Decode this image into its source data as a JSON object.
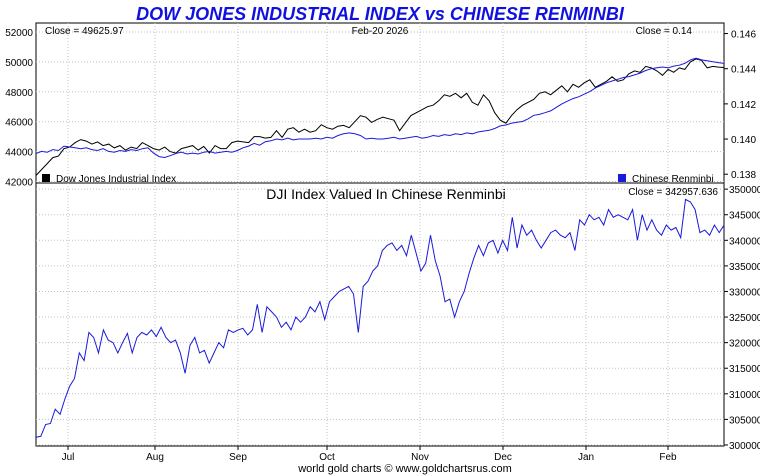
{
  "chart_data": [
    {
      "type": "line",
      "title": "DOW JONES INDUSTRIAL INDEX vs CHINESE RENMINBI",
      "date_label": "Feb-20  2026",
      "close_left": "Close = 49625.97",
      "close_right": "Close = 0.14",
      "x_labels": [
        "Jul",
        "Aug",
        "Sep",
        "Oct",
        "Nov",
        "Dec",
        "Jan",
        "Feb"
      ],
      "y_left": {
        "ticks": [
          "52000",
          "50000",
          "48000",
          "46000",
          "44000",
          "42000"
        ],
        "ylim": [
          41900,
          52600
        ]
      },
      "y_right": {
        "ticks": [
          "0.146",
          "0.144",
          "0.142",
          "0.140",
          "0.138"
        ],
        "ylim": [
          0.1375,
          0.1466
        ]
      },
      "grid": true,
      "legend_position": "bottom",
      "colors": {
        "dow": "#000000",
        "cny": "#1a1adc"
      },
      "series": [
        {
          "name": "Dow Jones Industrial Index",
          "axis": "left",
          "values": [
            42400,
            42800,
            43200,
            43600,
            43700,
            44200,
            44300,
            44600,
            44800,
            44700,
            44500,
            44650,
            44400,
            44500,
            44250,
            44400,
            44100,
            44300,
            44200,
            44600,
            44400,
            44200,
            44100,
            44300,
            44000,
            43900,
            44200,
            44300,
            44400,
            44100,
            44350,
            43900,
            44400,
            44200,
            44200,
            44600,
            44700,
            44650,
            44600,
            45000,
            45000,
            44900,
            44950,
            45400,
            44950,
            45500,
            45600,
            45300,
            45500,
            45300,
            45400,
            45800,
            45600,
            45500,
            45700,
            45750,
            45600,
            46000,
            46400,
            46300,
            45950,
            46150,
            46300,
            46200,
            46100,
            45400,
            45900,
            46400,
            46600,
            46800,
            47000,
            47100,
            47400,
            47800,
            47700,
            47900,
            47600,
            47900,
            47300,
            47100,
            47800,
            47400,
            46600,
            46100,
            45900,
            46400,
            46800,
            47100,
            47300,
            47500,
            47900,
            48000,
            47800,
            48100,
            48400,
            48000,
            48500,
            48300,
            48600,
            48800,
            48300,
            48500,
            48700,
            49000,
            48700,
            48800,
            49200,
            49400,
            49300,
            49700,
            49600,
            49400,
            49100,
            49500,
            49300,
            49600,
            49500,
            50000,
            50200,
            50100,
            49600,
            49700,
            49650,
            49625.97
          ]
        },
        {
          "name": "Chinese Renminbi",
          "axis": "right",
          "values": [
            0.13918,
            0.1393,
            0.13925,
            0.1394,
            0.13935,
            0.1396,
            0.13955,
            0.1395,
            0.13945,
            0.1395,
            0.1394,
            0.13935,
            0.13945,
            0.1393,
            0.13925,
            0.13935,
            0.1393,
            0.1394,
            0.13935,
            0.13945,
            0.1395,
            0.1392,
            0.139,
            0.13895,
            0.13905,
            0.13918,
            0.13925,
            0.13915,
            0.1392,
            0.13915,
            0.13925,
            0.1393,
            0.1392,
            0.13925,
            0.1393,
            0.13925,
            0.13935,
            0.1395,
            0.1396,
            0.13975,
            0.13965,
            0.13985,
            0.1399,
            0.14,
            0.13995,
            0.14005,
            0.13995,
            0.14,
            0.14,
            0.14,
            0.14005,
            0.14,
            0.1401,
            0.14005,
            0.1402,
            0.1403,
            0.14035,
            0.1403,
            0.1402,
            0.14,
            0.14005,
            0.14,
            0.14,
            0.14005,
            0.1401,
            0.14,
            0.14005,
            0.1401,
            0.14015,
            0.14005,
            0.1401,
            0.1402,
            0.14015,
            0.14025,
            0.1402,
            0.1403,
            0.14025,
            0.14035,
            0.1403,
            0.1404,
            0.14045,
            0.1405,
            0.1406,
            0.14075,
            0.1408,
            0.1409,
            0.14095,
            0.141,
            0.14115,
            0.14135,
            0.1414,
            0.1415,
            0.1416,
            0.1418,
            0.142,
            0.14215,
            0.1423,
            0.1424,
            0.14255,
            0.1427,
            0.1429,
            0.14305,
            0.1432,
            0.1433,
            0.1434,
            0.1435,
            0.14355,
            0.14365,
            0.14375,
            0.1439,
            0.144,
            0.14405,
            0.1441,
            0.14405,
            0.14415,
            0.1442,
            0.1443,
            0.1445,
            0.1446,
            0.1445,
            0.14445,
            0.1444,
            0.14435,
            0.1443
          ]
        }
      ]
    },
    {
      "type": "line",
      "title": "DJI Index Valued In Chinese Renminbi",
      "close_label": "Close = 342957.636",
      "x_labels": [
        "Jul",
        "Aug",
        "Sep",
        "Oct",
        "Nov",
        "Dec",
        "Jan",
        "Feb"
      ],
      "y_right": {
        "ticks": [
          "350000",
          "345000",
          "340000",
          "335000",
          "330000",
          "325000",
          "320000",
          "315000",
          "310000",
          "305000",
          "300000"
        ],
        "ylim": [
          299800,
          351200
        ]
      },
      "grid": true,
      "colors": {
        "line": "#1a1adc"
      },
      "series": [
        {
          "name": "",
          "values": [
            301500,
            301700,
            304000,
            304200,
            307000,
            306000,
            309000,
            311500,
            313000,
            318000,
            316500,
            322000,
            321000,
            318000,
            322500,
            320500,
            320000,
            318000,
            320000,
            321800,
            318000,
            321000,
            322000,
            321500,
            322500,
            321200,
            323000,
            321000,
            320000,
            320500,
            318000,
            314000,
            319500,
            321000,
            318000,
            318500,
            316000,
            318000,
            320000,
            319000,
            322500,
            322000,
            322500,
            322800,
            321500,
            322500,
            327500,
            322000,
            327000,
            326000,
            325000,
            323000,
            324000,
            322500,
            325000,
            324000,
            325000,
            327000,
            326000,
            328000,
            324500,
            328000,
            329000,
            330000,
            330500,
            331000,
            329500,
            322000,
            331000,
            332000,
            334000,
            335000,
            338000,
            339000,
            339500,
            338000,
            339000,
            337000,
            341000,
            337500,
            334000,
            335500,
            341000,
            336000,
            333000,
            328000,
            328500,
            325000,
            328000,
            330000,
            333500,
            336500,
            339000,
            337000,
            339500,
            340000,
            337500,
            340000,
            338000,
            344500,
            338500,
            343000,
            341000,
            342000,
            340000,
            338500,
            340000,
            341500,
            342000,
            341000,
            340500,
            341500,
            338000,
            344000,
            343000,
            345000,
            344000,
            344500,
            343000,
            346000,
            344500,
            345000,
            344500,
            344000,
            346000,
            340000,
            345000,
            342000,
            344000,
            342000,
            341000,
            343000,
            342000,
            342500,
            340500,
            348000,
            347500,
            346000,
            341500,
            342000,
            341000,
            343000,
            341500,
            342957.636
          ]
        }
      ]
    }
  ],
  "footer": {
    "credit": "world gold charts © www.goldchartsrus.com"
  }
}
